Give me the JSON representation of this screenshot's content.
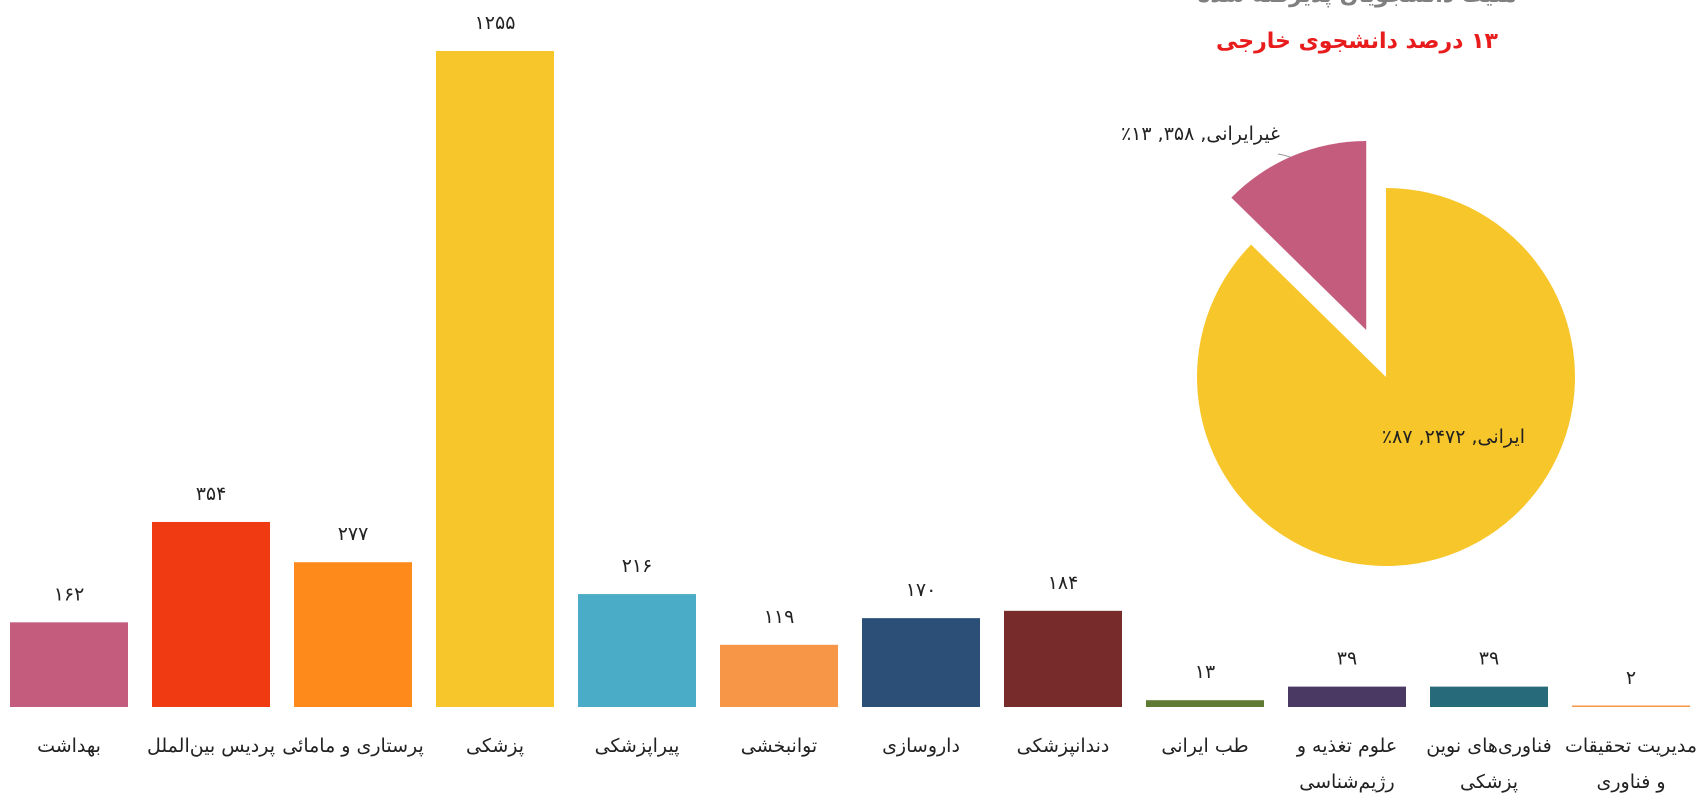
{
  "chart_data": [
    {
      "type": "bar",
      "categories": [
        "بهداشت",
        "پردیس بین‌الملل",
        "پرستاری و مامائی",
        "پزشکی",
        "پیراپزشکی",
        "توانبخشی",
        "داروسازی",
        "دندانپزشکی",
        "طب ایرانی",
        "علوم تغذیه و\nرژیم‌شناسی",
        "فناوری‌های نوین\nپزشکی",
        "مدیریت تحقیقات\nو فناوری"
      ],
      "values": [
        162,
        354,
        277,
        1255,
        216,
        119,
        170,
        184,
        13,
        39,
        39,
        2
      ],
      "value_labels": [
        "۱۶۲",
        "۳۵۴",
        "۲۷۷",
        "۱۲۵۵",
        "۲۱۶",
        "۱۱۹",
        "۱۷۰",
        "۱۸۴",
        "۱۳",
        "۳۹",
        "۳۹",
        "۲"
      ],
      "colors": [
        "#c45c7e",
        "#f03a12",
        "#fd8a1a",
        "#f7c62a",
        "#4aacc6",
        "#f79646",
        "#2c4f77",
        "#772b2b",
        "#5f7a33",
        "#4a3a63",
        "#276b7a",
        "#f79646"
      ]
    },
    {
      "type": "pie",
      "title": "مليت دانشجويان پذيرفته شده",
      "subtitle": "۱۳ درصد دانشجوی خارجی",
      "values": [
        358,
        2472
      ],
      "value_labels": [
        "غیرایرانی, ۳۵۸, ۱۳٪",
        "ایرانی, ۲۴۷۲, ۸۷٪"
      ],
      "colors": [
        "#c45c7e",
        "#f7c62a"
      ]
    }
  ]
}
